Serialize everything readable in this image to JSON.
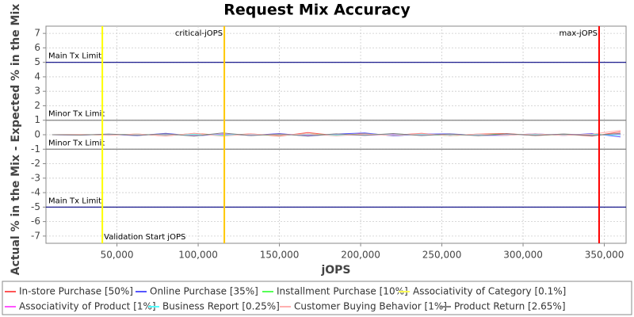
{
  "chart_data": {
    "type": "line",
    "title": "Request Mix Accuracy",
    "x_label": "jOPS",
    "y_label": "Actual % in the Mix - Expected % in the Mix",
    "xlim": [
      6300,
      363400
    ],
    "ylim": [
      -7.5,
      7.5
    ],
    "xticks": [
      {
        "value": 50000,
        "label": "50,000"
      },
      {
        "value": 100000,
        "label": "100,000"
      },
      {
        "value": 150000,
        "label": "150,000"
      },
      {
        "value": 200000,
        "label": "200,000"
      },
      {
        "value": 250000,
        "label": "250,000"
      },
      {
        "value": 300000,
        "label": "300,000"
      },
      {
        "value": 350000,
        "label": "350,000"
      }
    ],
    "yticks": [
      -7,
      -6,
      -5,
      -4,
      -3,
      -2,
      -1,
      0,
      1,
      2,
      3,
      4,
      5,
      6,
      7
    ],
    "grid": true,
    "x": [
      10000,
      27500,
      45000,
      62500,
      80000,
      97500,
      115000,
      132500,
      150000,
      167500,
      185000,
      202500,
      220000,
      237500,
      255000,
      272500,
      290000,
      307500,
      325000,
      342500,
      360000
    ],
    "series": [
      {
        "name": "In-store Purchase [50%]",
        "color": "#ff5555",
        "values": [
          0,
          0.02,
          -0.03,
          0.05,
          -0.08,
          0.1,
          -0.05,
          0.06,
          -0.1,
          0.15,
          -0.06,
          0.08,
          -0.04,
          0.1,
          -0.07,
          0.05,
          0.08,
          -0.06,
          0.04,
          -0.1,
          0.2
        ]
      },
      {
        "name": "Online Purchase [35%]",
        "color": "#5555ff",
        "values": [
          0,
          -0.02,
          0.03,
          -0.06,
          0.1,
          -0.08,
          0.04,
          -0.05,
          0.08,
          -0.1,
          0.05,
          0.12,
          -0.08,
          0.04,
          0.06,
          -0.05,
          -0.04,
          0.07,
          -0.05,
          0.08,
          -0.15
        ]
      },
      {
        "name": "Installment Purchase [10%]",
        "color": "#55ff55",
        "values": [
          0,
          0.01,
          -0.02,
          0.04,
          -0.05,
          0.06,
          -0.04,
          0.03,
          -0.05,
          0.06,
          -0.04,
          0.05,
          -0.03,
          0.04,
          -0.06,
          0.03,
          0.04,
          -0.04,
          0.05,
          -0.03,
          0.05
        ]
      },
      {
        "name": "Associativity of Category [0.1%]",
        "color": "#ffff55",
        "values": [
          0,
          0,
          0.01,
          -0.01,
          0.02,
          -0.01,
          0.01,
          -0.02,
          0.01,
          0,
          -0.01,
          0.02,
          -0.01,
          0.01,
          0,
          -0.01,
          0.01,
          0,
          -0.01,
          0.01,
          0
        ]
      },
      {
        "name": "Associativity of Product [1%]",
        "color": "#ff55ff",
        "values": [
          0,
          -0.01,
          0.02,
          -0.03,
          0.04,
          -0.05,
          0.03,
          -0.02,
          0.04,
          -0.03,
          0.02,
          -0.04,
          0.03,
          -0.02,
          0.03,
          -0.04,
          0.02,
          -0.03,
          0.04,
          -0.02,
          0.03
        ]
      },
      {
        "name": "Business Report [0.25%]",
        "color": "#55ffff",
        "values": [
          0,
          0.01,
          -0.01,
          0.02,
          -0.02,
          0.01,
          -0.02,
          0.02,
          -0.01,
          0.02,
          -0.02,
          0.01,
          -0.01,
          0.02,
          -0.02,
          0.01,
          -0.01,
          0.02,
          -0.01,
          0.01,
          -0.02
        ]
      },
      {
        "name": "Customer Buying Behavior [1%]",
        "color": "#ffafaf",
        "values": [
          0,
          0.02,
          -0.04,
          0.05,
          -0.06,
          0.08,
          -0.1,
          0.05,
          -0.04,
          0.06,
          -0.08,
          0.04,
          -0.05,
          0.07,
          -0.06,
          0.05,
          -0.04,
          0.06,
          -0.05,
          0.04,
          0.3
        ]
      },
      {
        "name": "Product Return [2.65%]",
        "color": "#808080",
        "values": [
          0,
          -0.03,
          0.05,
          -0.04,
          0.06,
          -0.1,
          0.12,
          -0.06,
          0.05,
          -0.08,
          0.06,
          -0.05,
          0.08,
          -0.06,
          0.05,
          -0.07,
          0.06,
          -0.05,
          0.04,
          -0.06,
          0.1
        ]
      }
    ],
    "hlines": [
      {
        "value": 5,
        "label": "Main Tx Limit",
        "color": "#000080"
      },
      {
        "value": 1,
        "label": "Minor Tx Limit",
        "color": "#808080"
      },
      {
        "value": -1,
        "label": "Minor Tx Limit",
        "color": "#808080"
      },
      {
        "value": -5,
        "label": "Main Tx Limit",
        "color": "#000080"
      }
    ],
    "vlines": [
      {
        "value": 41000,
        "label": "Validation Start jOPS",
        "color": "#ffff00"
      },
      {
        "value": 116100,
        "label": "critical-jOPS",
        "color": "#ffc800"
      },
      {
        "value": 346800,
        "label": "max-jOPS",
        "color": "#ff0000"
      }
    ]
  }
}
